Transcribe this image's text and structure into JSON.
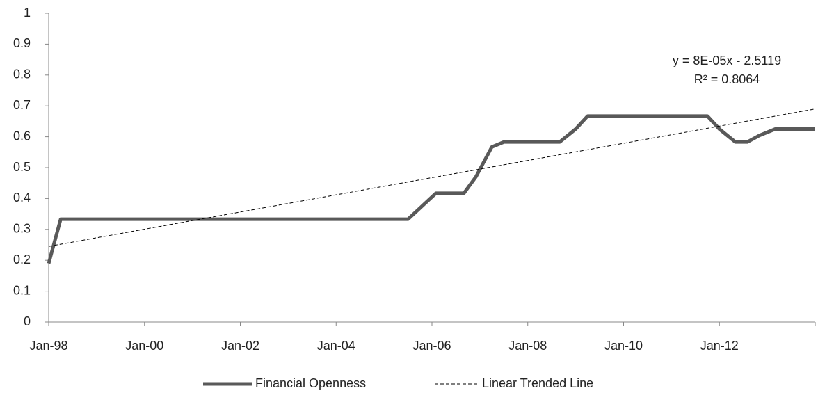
{
  "chart_data": {
    "type": "line",
    "annotations": [
      "y = 8E-05x - 2.5119",
      "R² = 0.8064"
    ],
    "series": [
      {
        "name": "Financial Openness",
        "color": "#595959",
        "style": "solid",
        "x": [
          "1998-01",
          "1998-04",
          "2005-07",
          "2006-02",
          "2006-09",
          "2006-12",
          "2007-04",
          "2007-07",
          "2008-09",
          "2009-01",
          "2009-04",
          "2011-10",
          "2012-01",
          "2012-05",
          "2012-08",
          "2012-11",
          "2013-03",
          "2014-01"
        ],
        "values": [
          0.19,
          0.333,
          0.333,
          0.417,
          0.417,
          0.47,
          0.567,
          0.583,
          0.583,
          0.625,
          0.667,
          0.667,
          0.625,
          0.583,
          0.583,
          0.604,
          0.625,
          0.625
        ]
      },
      {
        "name": "Linear Trended Line",
        "color": "#000000",
        "style": "dashed",
        "x": [
          "1998-01",
          "2014-01"
        ],
        "values": [
          0.245,
          0.69
        ]
      }
    ],
    "xlim": [
      "1998-01",
      "2014-01"
    ],
    "xticks": [
      {
        "value": "1998-01",
        "label": "Jan-98"
      },
      {
        "value": "2000-01",
        "label": "Jan-00"
      },
      {
        "value": "2002-01",
        "label": "Jan-02"
      },
      {
        "value": "2004-01",
        "label": "Jan-04"
      },
      {
        "value": "2006-01",
        "label": "Jan-06"
      },
      {
        "value": "2008-01",
        "label": "Jan-08"
      },
      {
        "value": "2010-01",
        "label": "Jan-10"
      },
      {
        "value": "2012-01",
        "label": "Jan-12"
      }
    ],
    "ylim": [
      0,
      1
    ],
    "yticks": [
      0,
      0.1,
      0.2,
      0.3,
      0.4,
      0.5,
      0.6,
      0.7,
      0.8,
      0.9,
      1
    ],
    "grid": false,
    "legend": "bottom"
  }
}
